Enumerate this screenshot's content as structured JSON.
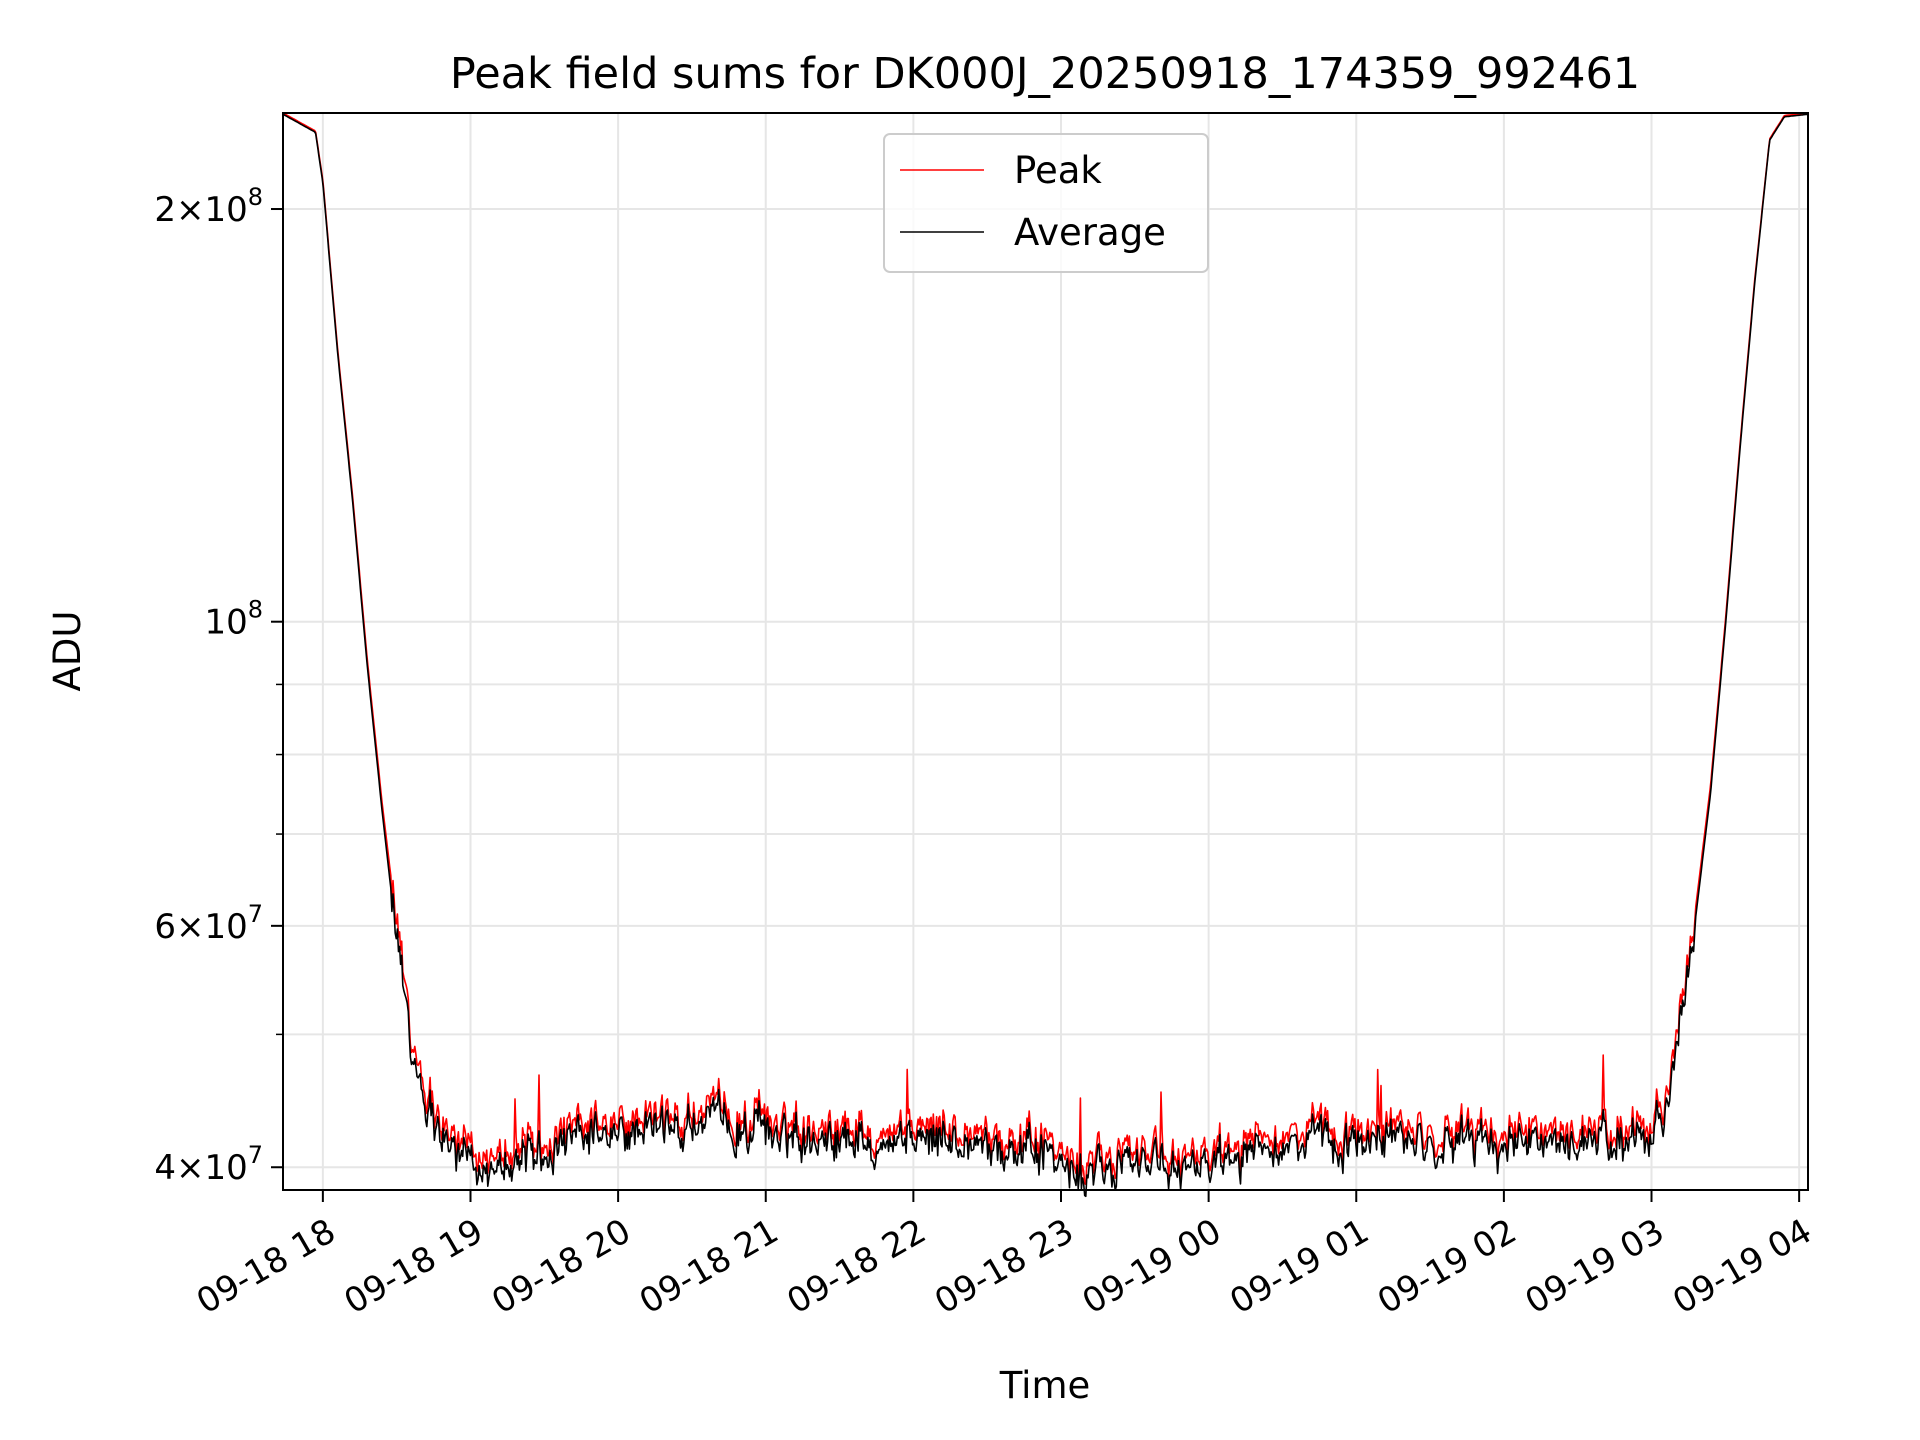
{
  "chart_data": {
    "type": "line",
    "title": "Peak field sums for DK000J_20250918_174359_992461",
    "xlabel": "Time",
    "ylabel": "ADU",
    "yscale": "log",
    "ylim": [
      38500000,
      235000000
    ],
    "xlim_hours": [
      17.73,
      28.06
    ],
    "grid": true,
    "legend_position": "top-center",
    "x_ticks": [
      {
        "hour": 18,
        "label": "09-18 18"
      },
      {
        "hour": 19,
        "label": "09-18 19"
      },
      {
        "hour": 20,
        "label": "09-18 20"
      },
      {
        "hour": 21,
        "label": "09-18 21"
      },
      {
        "hour": 22,
        "label": "09-18 22"
      },
      {
        "hour": 23,
        "label": "09-18 23"
      },
      {
        "hour": 24,
        "label": "09-19 00"
      },
      {
        "hour": 25,
        "label": "09-19 01"
      },
      {
        "hour": 26,
        "label": "09-19 02"
      },
      {
        "hour": 27,
        "label": "09-19 03"
      },
      {
        "hour": 28,
        "label": "09-19 04"
      }
    ],
    "y_major_ticks": [
      {
        "value": 40000000,
        "mant": "4",
        "exp": "7"
      },
      {
        "value": 60000000,
        "mant": "6",
        "exp": "7"
      },
      {
        "value": 100000000,
        "mant": "",
        "exp": "8"
      },
      {
        "value": 200000000,
        "mant": "2",
        "exp": "8"
      }
    ],
    "y_minor_ticks": [
      50000000,
      70000000,
      80000000,
      90000000
    ],
    "series": [
      {
        "name": "Peak",
        "color": "#ff0000",
        "x": [
          17.73,
          17.95,
          18.0,
          18.1,
          18.2,
          18.3,
          18.4,
          18.5,
          18.6,
          18.7,
          18.8,
          18.9,
          19.0,
          19.2,
          19.4,
          19.6,
          19.8,
          20.0,
          20.2,
          20.4,
          20.6,
          20.8,
          21.0,
          21.2,
          21.4,
          21.6,
          21.8,
          22.0,
          22.2,
          22.4,
          22.6,
          22.8,
          23.0,
          23.15,
          23.3,
          23.5,
          23.7,
          23.9,
          24.0,
          24.2,
          24.4,
          24.6,
          24.8,
          25.0,
          25.2,
          25.4,
          25.6,
          25.8,
          26.0,
          26.2,
          26.4,
          26.6,
          26.8,
          27.0,
          27.1,
          27.2,
          27.3,
          27.4,
          27.5,
          27.6,
          27.7,
          27.8,
          27.9,
          28.06
        ],
        "values": [
          235000000,
          228000000,
          210000000,
          158000000,
          124000000,
          94000000,
          74000000,
          60000000,
          50000000,
          46000000,
          43300000,
          41700000,
          41200000,
          41300000,
          41700000,
          42100000,
          42700000,
          43000000,
          43300000,
          43500000,
          43800000,
          43600000,
          43300000,
          43200000,
          43100000,
          43000000,
          42900000,
          42800000,
          42600000,
          42400000,
          42300000,
          41900000,
          41000000,
          39800000,
          40500000,
          41600000,
          40400000,
          40800000,
          41600000,
          41900000,
          42100000,
          42400000,
          42500000,
          42600000,
          42700000,
          42600000,
          42500000,
          42400000,
          42300000,
          42200000,
          42300000,
          42400000,
          42500000,
          43200000,
          45500000,
          52000000,
          62000000,
          76000000,
          100000000,
          135000000,
          178000000,
          225000000,
          234000000,
          235000000
        ]
      },
      {
        "name": "Average",
        "color": "#000000",
        "x": [
          17.73,
          17.95,
          18.0,
          18.1,
          18.2,
          18.3,
          18.4,
          18.5,
          18.6,
          18.7,
          18.8,
          18.9,
          19.0,
          19.2,
          19.4,
          19.6,
          19.8,
          20.0,
          20.2,
          20.4,
          20.6,
          20.8,
          21.0,
          21.2,
          21.4,
          21.6,
          21.8,
          22.0,
          22.2,
          22.4,
          22.6,
          22.8,
          23.0,
          23.15,
          23.3,
          23.5,
          23.7,
          23.9,
          24.0,
          24.2,
          24.4,
          24.6,
          24.8,
          25.0,
          25.2,
          25.4,
          25.6,
          25.8,
          26.0,
          26.2,
          26.4,
          26.6,
          26.8,
          27.0,
          27.1,
          27.2,
          27.3,
          27.4,
          27.5,
          27.6,
          27.7,
          27.8,
          27.9,
          28.06
        ],
        "values": [
          234500000,
          227500000,
          209000000,
          157000000,
          123000000,
          93000000,
          73000000,
          58500000,
          49000000,
          45000000,
          42500000,
          40900000,
          40300000,
          40400000,
          40900000,
          41300000,
          41900000,
          42200000,
          42500000,
          42700000,
          43000000,
          42800000,
          42500000,
          42400000,
          42300000,
          42200000,
          42100000,
          42000000,
          41800000,
          41600000,
          41500000,
          41100000,
          40200000,
          39000000,
          39700000,
          40800000,
          39600000,
          40000000,
          40800000,
          41100000,
          41300000,
          41600000,
          41700000,
          41800000,
          41900000,
          41800000,
          41700000,
          41600000,
          41500000,
          41400000,
          41500000,
          41600000,
          41700000,
          42400000,
          44600000,
          51000000,
          61000000,
          75000000,
          99000000,
          134000000,
          177000000,
          224500000,
          233500000,
          234500000
        ]
      }
    ]
  }
}
